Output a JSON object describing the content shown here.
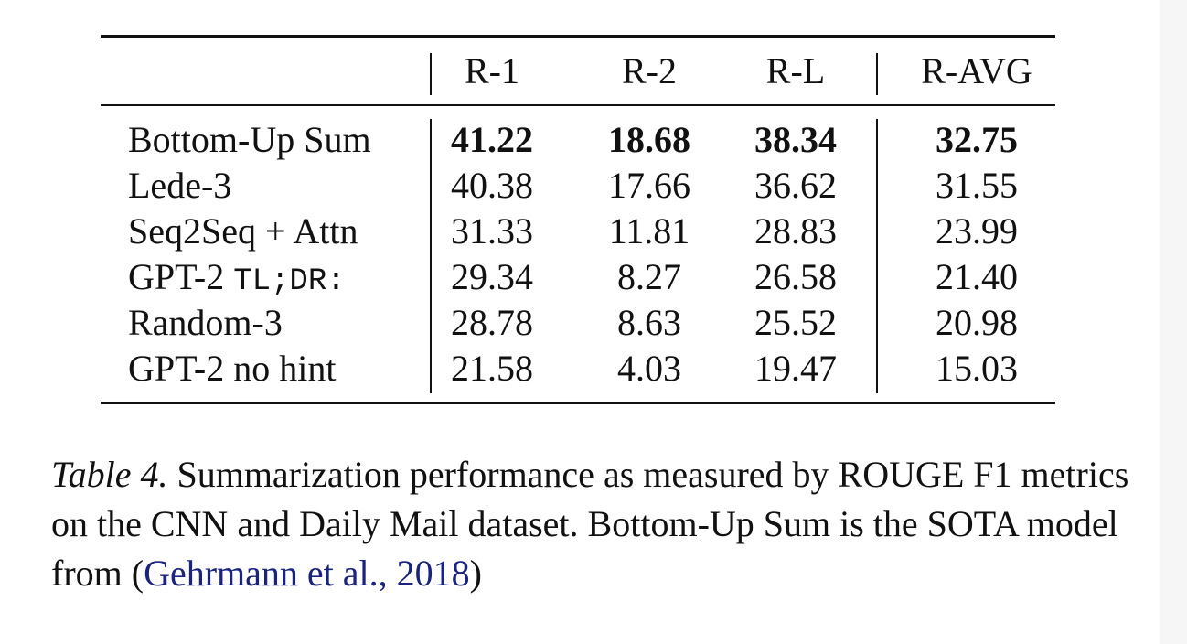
{
  "table": {
    "headers": [
      "",
      "R-1",
      "R-2",
      "R-L",
      "R-AVG"
    ],
    "rows": [
      {
        "model": "Bottom-Up Sum",
        "model_suffix": "",
        "values": [
          "41.22",
          "18.68",
          "38.34",
          "32.75"
        ],
        "bold": true
      },
      {
        "model": "Lede-3",
        "model_suffix": "",
        "values": [
          "40.38",
          "17.66",
          "36.62",
          "31.55"
        ],
        "bold": false
      },
      {
        "model": "Seq2Seq + Attn",
        "model_suffix": "",
        "values": [
          "31.33",
          "11.81",
          "28.83",
          "23.99"
        ],
        "bold": false
      },
      {
        "model": "GPT-2",
        "model_suffix": "TL;DR:",
        "values": [
          "29.34",
          "8.27",
          "26.58",
          "21.40"
        ],
        "bold": false
      },
      {
        "model": "Random-3",
        "model_suffix": "",
        "values": [
          "28.78",
          "8.63",
          "25.52",
          "20.98"
        ],
        "bold": false
      },
      {
        "model": "GPT-2 no hint",
        "model_suffix": "",
        "values": [
          "21.58",
          "4.03",
          "19.47",
          "15.03"
        ],
        "bold": false
      }
    ]
  },
  "caption": {
    "label": "Table 4.",
    "text_before_citation": " Summarization performance as measured by ROUGE F1 metrics on the CNN and Daily Mail dataset. Bottom-Up Sum is the SOTA model from (",
    "citation": "Gehrmann et al., 2018",
    "text_after_citation": ")"
  },
  "colors": {
    "text": "#111111",
    "citation": "#1a237e",
    "background": "#ffffff"
  }
}
